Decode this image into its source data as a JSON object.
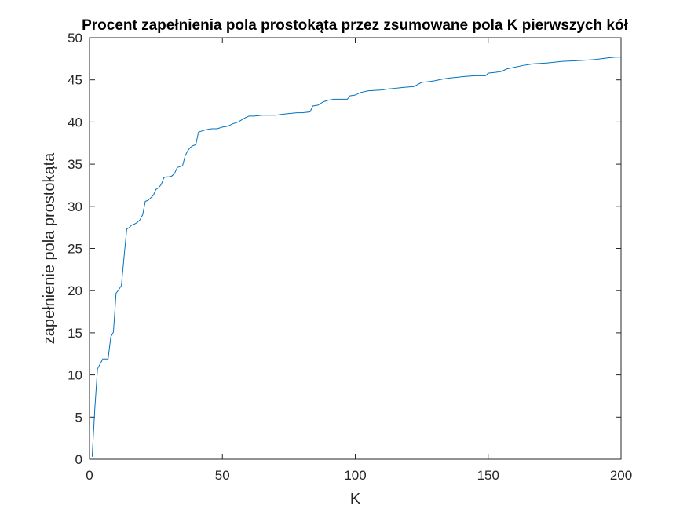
{
  "chart_data": {
    "type": "line",
    "title": "Procent zapełnienia pola prostokąta przez zsumowane pola K pierwszych kół",
    "xlabel": "K",
    "ylabel": "zapełnienie pola prostokąta",
    "xlim": [
      0,
      200
    ],
    "ylim": [
      0,
      50
    ],
    "xticks": [
      0,
      50,
      100,
      150,
      200
    ],
    "yticks": [
      0,
      5,
      10,
      15,
      20,
      25,
      30,
      35,
      40,
      45,
      50
    ],
    "grid": false,
    "line_color": "#0072BD",
    "series": [
      {
        "values": [
          [
            1,
            0.3
          ],
          [
            2,
            6.0
          ],
          [
            3,
            10.7
          ],
          [
            4,
            11.3
          ],
          [
            5,
            11.9
          ],
          [
            6,
            11.9
          ],
          [
            7,
            11.9
          ],
          [
            8,
            14.5
          ],
          [
            9,
            15.1
          ],
          [
            10,
            19.7
          ],
          [
            11,
            20.1
          ],
          [
            12,
            20.6
          ],
          [
            13,
            24.0
          ],
          [
            14,
            27.3
          ],
          [
            15,
            27.5
          ],
          [
            16,
            27.8
          ],
          [
            17,
            27.9
          ],
          [
            18,
            28.1
          ],
          [
            19,
            28.4
          ],
          [
            20,
            29.0
          ],
          [
            21,
            30.6
          ],
          [
            22,
            30.7
          ],
          [
            23,
            31.0
          ],
          [
            24,
            31.3
          ],
          [
            25,
            32.0
          ],
          [
            26,
            32.2
          ],
          [
            27,
            32.6
          ],
          [
            28,
            33.4
          ],
          [
            29,
            33.5
          ],
          [
            30,
            33.5
          ],
          [
            31,
            33.6
          ],
          [
            32,
            33.9
          ],
          [
            33,
            34.6
          ],
          [
            34,
            34.7
          ],
          [
            35,
            34.8
          ],
          [
            36,
            36.0
          ],
          [
            37,
            36.6
          ],
          [
            38,
            37.0
          ],
          [
            39,
            37.2
          ],
          [
            40,
            37.3
          ],
          [
            41,
            38.8
          ],
          [
            42,
            38.9
          ],
          [
            43,
            39.0
          ],
          [
            44,
            39.1
          ],
          [
            46,
            39.2
          ],
          [
            48,
            39.2
          ],
          [
            50,
            39.4
          ],
          [
            52,
            39.5
          ],
          [
            54,
            39.8
          ],
          [
            56,
            40.0
          ],
          [
            58,
            40.4
          ],
          [
            60,
            40.7
          ],
          [
            62,
            40.7
          ],
          [
            65,
            40.8
          ],
          [
            70,
            40.8
          ],
          [
            72,
            40.9
          ],
          [
            75,
            41.0
          ],
          [
            78,
            41.1
          ],
          [
            80,
            41.1
          ],
          [
            83,
            41.2
          ],
          [
            84,
            41.9
          ],
          [
            86,
            42.0
          ],
          [
            88,
            42.4
          ],
          [
            90,
            42.6
          ],
          [
            92,
            42.7
          ],
          [
            97,
            42.7
          ],
          [
            98,
            43.1
          ],
          [
            100,
            43.2
          ],
          [
            102,
            43.5
          ],
          [
            105,
            43.7
          ],
          [
            110,
            43.8
          ],
          [
            112,
            43.9
          ],
          [
            115,
            44.0
          ],
          [
            118,
            44.1
          ],
          [
            122,
            44.2
          ],
          [
            125,
            44.7
          ],
          [
            128,
            44.8
          ],
          [
            130,
            44.9
          ],
          [
            133,
            45.1
          ],
          [
            135,
            45.2
          ],
          [
            138,
            45.3
          ],
          [
            141,
            45.4
          ],
          [
            145,
            45.5
          ],
          [
            149,
            45.5
          ],
          [
            150,
            45.8
          ],
          [
            153,
            45.9
          ],
          [
            155,
            46.0
          ],
          [
            157,
            46.3
          ],
          [
            160,
            46.5
          ],
          [
            163,
            46.7
          ],
          [
            167,
            46.9
          ],
          [
            172,
            47.0
          ],
          [
            178,
            47.2
          ],
          [
            185,
            47.3
          ],
          [
            190,
            47.4
          ],
          [
            195,
            47.6
          ],
          [
            198,
            47.7
          ],
          [
            200,
            47.7
          ]
        ]
      }
    ]
  }
}
